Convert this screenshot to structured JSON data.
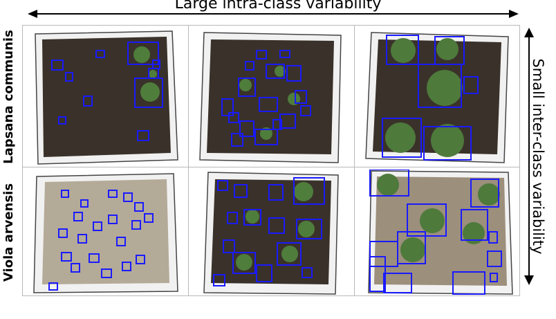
{
  "header": {
    "top_label": "Large intra-class variability"
  },
  "side": {
    "right_label": "Small inter-class variability"
  },
  "rows": [
    {
      "label": "Lapsana communis"
    },
    {
      "label": "Viola arvensis"
    }
  ],
  "colors": {
    "box": "#1a1aff",
    "soil_dark": "#3b332a",
    "soil_light": "#b4aa98",
    "tray": "#f2f2f2",
    "plant": "#3f6e32"
  },
  "icons": {
    "arrows": "double-headed-arrow"
  }
}
